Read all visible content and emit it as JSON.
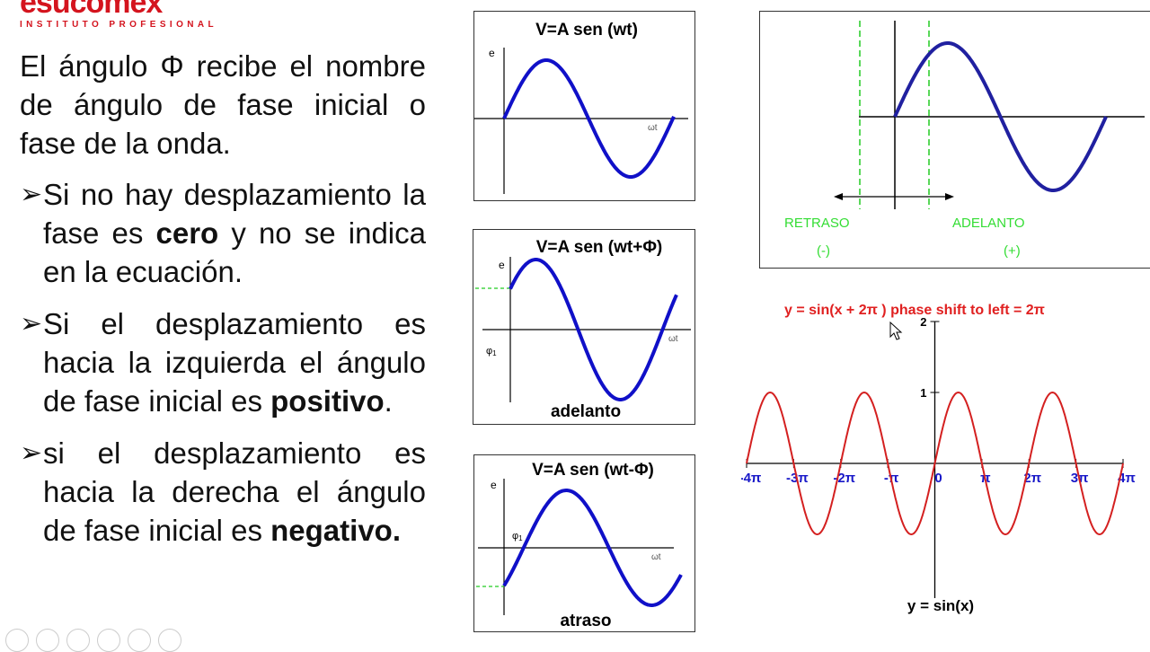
{
  "logo": {
    "name": "esucomex",
    "subtitle": "INSTITUTO PROFESIONAL"
  },
  "text": {
    "intro": "El ángulo Φ recibe el nombre de ángulo de fase inicial o fase de la onda.",
    "bullets": [
      {
        "pre": "Si no hay desplazamiento la fase es ",
        "bold": "cero",
        "post": " y no se indica en la ecuación."
      },
      {
        "pre": "Si el desplazamiento es hacia la izquierda el ángulo de fase inicial es ",
        "bold": "positivo",
        "post": "."
      },
      {
        "pre": "si el desplazamiento es hacia la derecha el ángulo de fase inicial es ",
        "bold": "negativo.",
        "post": ""
      }
    ],
    "arrow_symbol": "➢"
  },
  "panels": {
    "p1": {
      "title": "V=A sen (wt)",
      "e": "e",
      "axis": "ωt"
    },
    "p2": {
      "title": "V=A sen (wt+Φ)",
      "e": "e",
      "axis": "ωt",
      "phi": "φ",
      "phi_sub": "1",
      "caption": "adelanto"
    },
    "p3": {
      "title": "V=A sen (wt-Φ)",
      "e": "e",
      "axis": "ωt",
      "phi": "φ",
      "phi_sub": "1",
      "caption": "atraso"
    },
    "p4": {
      "retraso": "RETRASO",
      "retraso_sign": "(-)",
      "adelanto": "ADELANTO",
      "adelanto_sign": "(+)"
    }
  },
  "chart_data": {
    "type": "line",
    "title": "y = sin(x +  2π  )  phase shift to left =  2π",
    "xlabel": "y = sin(x)",
    "xlim": [
      -4,
      4
    ],
    "x_unit": "π",
    "ylim": [
      -1,
      2
    ],
    "x_tick_labels": [
      "-4π",
      "-3π",
      "-2π",
      "-π",
      "0",
      "π",
      "2π",
      "3π",
      "4π"
    ],
    "y_tick_labels": [
      "1",
      "2"
    ],
    "series": [
      {
        "values_function": "sin(x)",
        "color": "#d42020"
      }
    ]
  },
  "colors": {
    "blue_curve": "#1010c8",
    "red_curve": "#d42020",
    "green": "#22cc22",
    "logo_red": "#d4141e",
    "tick_blue": "#1818c8"
  }
}
